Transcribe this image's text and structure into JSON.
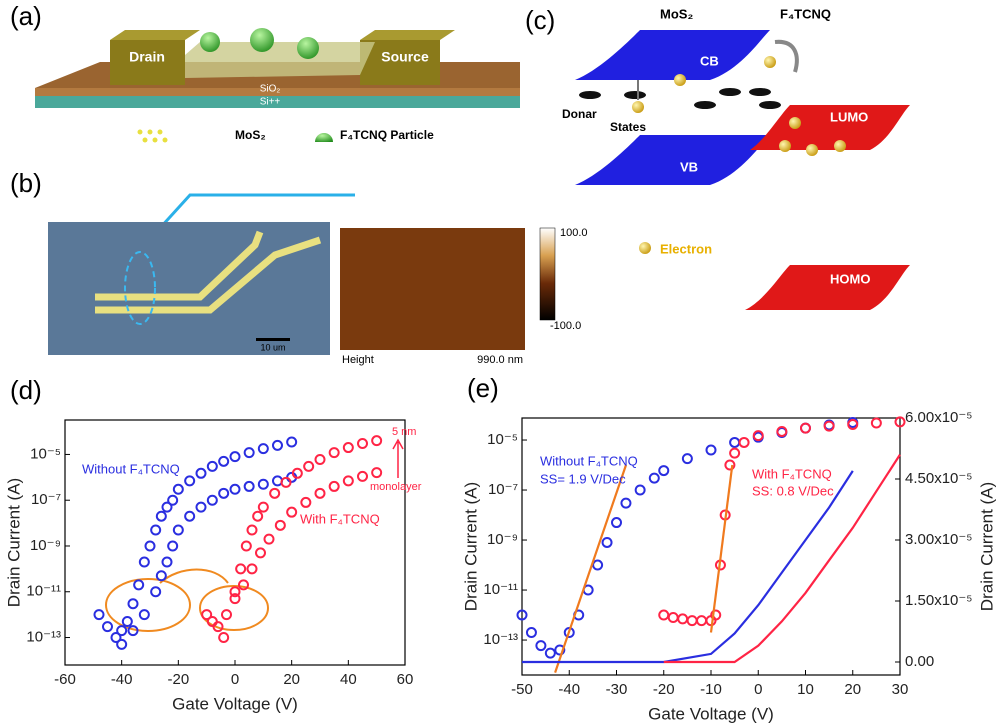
{
  "panels": {
    "a": {
      "label": "(a)",
      "drain": "Drain",
      "source": "Source",
      "sio2": "SiO₂",
      "si": "Si++",
      "legend_mos2": "MoS₂",
      "legend_particle": "F₄TCNQ Particle"
    },
    "b": {
      "label": "(b)",
      "scale_bar": "10 um",
      "cbar_max": "100.0",
      "cbar_min": "-100.0",
      "height": "Height",
      "size": "990.0 nm"
    },
    "c": {
      "label": "(c)",
      "mos2": "MoS₂",
      "f4tcnq": "F₄TCNQ",
      "cb": "CB",
      "vb": "VB",
      "lumo": "LUMO",
      "homo": "HOMO",
      "donar": "Donar",
      "states": "States",
      "electron": "Electron"
    }
  },
  "chart_data": [
    {
      "type": "scatter",
      "panel": "(d)",
      "xlabel": "Gate Voltage (V)",
      "ylabel": "Drain Current (A)",
      "xlim": [
        -60,
        60
      ],
      "xticks": [
        -60,
        -40,
        -20,
        0,
        20,
        40,
        60
      ],
      "ylog": true,
      "ylim": [
        6.3e-15,
        0.00032
      ],
      "yticks": [
        {
          "value": 1e-13,
          "label": "10⁻¹³"
        },
        {
          "value": 1e-11,
          "label": "10⁻¹¹"
        },
        {
          "value": 1e-09,
          "label": "10⁻⁹"
        },
        {
          "value": 1e-07,
          "label": "10⁻⁷"
        },
        {
          "value": 1e-05,
          "label": "10⁻⁵"
        }
      ],
      "annotations": [
        "Without F₄TCNQ",
        "With F₄TCNQ",
        "5 nm",
        "monolayer"
      ],
      "series": [
        {
          "color": "#2a2ee0",
          "style": "markers",
          "x": [
            -48,
            -45,
            -42,
            -40,
            -38,
            -36,
            -34,
            -32,
            -30,
            -28,
            -26,
            -24,
            -22,
            -20,
            -16,
            -12,
            -8,
            -4,
            0,
            5,
            10,
            15,
            20
          ],
          "values": [
            1e-12,
            3e-13,
            1e-13,
            2e-13,
            5e-13,
            3e-12,
            2e-11,
            2e-10,
            1e-09,
            5e-09,
            2e-08,
            5e-08,
            1e-07,
            3e-07,
            7e-07,
            1.5e-06,
            3e-06,
            5e-06,
            8e-06,
            1.2e-05,
            1.8e-05,
            2.5e-05,
            3.5e-05
          ]
        },
        {
          "color": "#2a2ee0",
          "style": "markers",
          "x": [
            -40,
            -36,
            -32,
            -28,
            -26,
            -24,
            -22,
            -20,
            -16,
            -12,
            -8,
            -4,
            0,
            5,
            10,
            15,
            20
          ],
          "values": [
            5e-14,
            2e-13,
            1e-12,
            1e-11,
            5e-11,
            2e-10,
            1e-09,
            5e-09,
            2e-08,
            5e-08,
            1e-07,
            2e-07,
            3e-07,
            4e-07,
            5e-07,
            7e-07,
            1e-06
          ]
        },
        {
          "color": "#ff2445",
          "style": "markers",
          "x": [
            -10,
            -6,
            -3,
            0,
            2,
            4,
            6,
            8,
            10,
            14,
            18,
            22,
            26,
            30,
            35,
            40,
            45,
            50
          ],
          "values": [
            1e-12,
            3e-13,
            1e-12,
            1e-11,
            1e-10,
            1e-09,
            5e-09,
            2e-08,
            5e-08,
            2e-07,
            6e-07,
            1.5e-06,
            3e-06,
            6e-06,
            1.2e-05,
            2e-05,
            3e-05,
            4e-05
          ]
        },
        {
          "color": "#ff2445",
          "style": "markers",
          "x": [
            -8,
            -4,
            0,
            3,
            6,
            9,
            12,
            16,
            20,
            25,
            30,
            35,
            40,
            45,
            50
          ],
          "values": [
            5e-13,
            1e-13,
            5e-12,
            2e-11,
            1e-10,
            5e-10,
            2e-09,
            8e-09,
            3e-08,
            8e-08,
            2e-07,
            4e-07,
            7e-07,
            1.1e-06,
            1.6e-06
          ]
        }
      ]
    },
    {
      "type": "line",
      "panel": "(e)",
      "xlabel": "Gate Voltage (V)",
      "ylabel": "Drain Current (A)",
      "y2label": "Drain Current (A)",
      "xlim": [
        -50,
        30
      ],
      "xticks": [
        -50,
        -40,
        -30,
        -20,
        -10,
        0,
        10,
        20,
        30
      ],
      "ylog": true,
      "ylim": [
        4e-15,
        7.6e-05
      ],
      "yticks": [
        {
          "value": 1e-13,
          "label": "10⁻¹³"
        },
        {
          "value": 1e-11,
          "label": "10⁻¹¹"
        },
        {
          "value": 1e-09,
          "label": "10⁻⁹"
        },
        {
          "value": 1e-07,
          "label": "10⁻⁷"
        },
        {
          "value": 1e-05,
          "label": "10⁻⁵"
        }
      ],
      "y2lim": [
        -3.2e-06,
        6e-05
      ],
      "y2ticks": [
        {
          "value": 0,
          "label": "0.00"
        },
        {
          "value": 1.5e-05,
          "label": "1.50x10⁻⁵"
        },
        {
          "value": 3e-05,
          "label": "3.00x10⁻⁵"
        },
        {
          "value": 4.5e-05,
          "label": "4.50x10⁻⁵"
        },
        {
          "value": 6e-05,
          "label": "6.00x10⁻⁵"
        }
      ],
      "annotations": [
        "Without F₄TCNQ",
        "SS= 1.9 V/Dec",
        "With F₄TCNQ",
        "SS: 0.8 V/Dec"
      ],
      "series": [
        {
          "color": "#2a2ee0",
          "style": "markers",
          "x": [
            -50,
            -48,
            -46,
            -44,
            -42,
            -40,
            -38,
            -36,
            -34,
            -32,
            -30,
            -28,
            -25,
            -22,
            -20,
            -15,
            -10,
            -5,
            0,
            5,
            10,
            15,
            20
          ],
          "values": [
            1e-12,
            2e-13,
            6e-14,
            3e-14,
            4e-14,
            2e-13,
            1e-12,
            1e-11,
            1e-10,
            8e-10,
            5e-09,
            3e-08,
            1e-07,
            3e-07,
            6e-07,
            1.8e-06,
            4e-06,
            8e-06,
            1.3e-05,
            2e-05,
            3e-05,
            4e-05,
            5e-05
          ]
        },
        {
          "color": "#ff2445",
          "style": "markers",
          "x": [
            -20,
            -18,
            -16,
            -14,
            -12,
            -10,
            -9,
            -8,
            -7,
            -6,
            -5,
            -3,
            0,
            5,
            10,
            15,
            20,
            25,
            30
          ],
          "values": [
            1e-12,
            8e-13,
            7e-13,
            6e-13,
            6e-13,
            6e-13,
            1e-12,
            1e-10,
            1e-08,
            1e-06,
            3e-06,
            8e-06,
            1.5e-05,
            2.2e-05,
            3e-05,
            3.6e-05,
            4.2e-05,
            4.8e-05,
            5.3e-05
          ]
        },
        {
          "color": "#f07a1e",
          "style": "line",
          "x": [
            -43,
            -28
          ],
          "values": [
            5e-15,
            1e-06
          ]
        },
        {
          "color": "#f07a1e",
          "style": "line",
          "x": [
            -10,
            -5.5
          ],
          "values": [
            2e-13,
            1e-06
          ]
        },
        {
          "color": "#2a2ee0",
          "style": "line",
          "axis": "y2",
          "x": [
            -50,
            -20,
            -10,
            -5,
            0,
            5,
            10,
            15,
            20
          ],
          "values": [
            0,
            0,
            2e-06,
            7e-06,
            1.4e-05,
            2.2e-05,
            3e-05,
            3.8e-05,
            4.7e-05
          ]
        },
        {
          "color": "#ff2445",
          "style": "line",
          "axis": "y2",
          "x": [
            -20,
            -5,
            0,
            5,
            10,
            15,
            20,
            25,
            30
          ],
          "values": [
            0,
            0,
            4e-06,
            1e-05,
            1.7e-05,
            2.5e-05,
            3.3e-05,
            4.2e-05,
            5.1e-05
          ]
        }
      ]
    }
  ]
}
